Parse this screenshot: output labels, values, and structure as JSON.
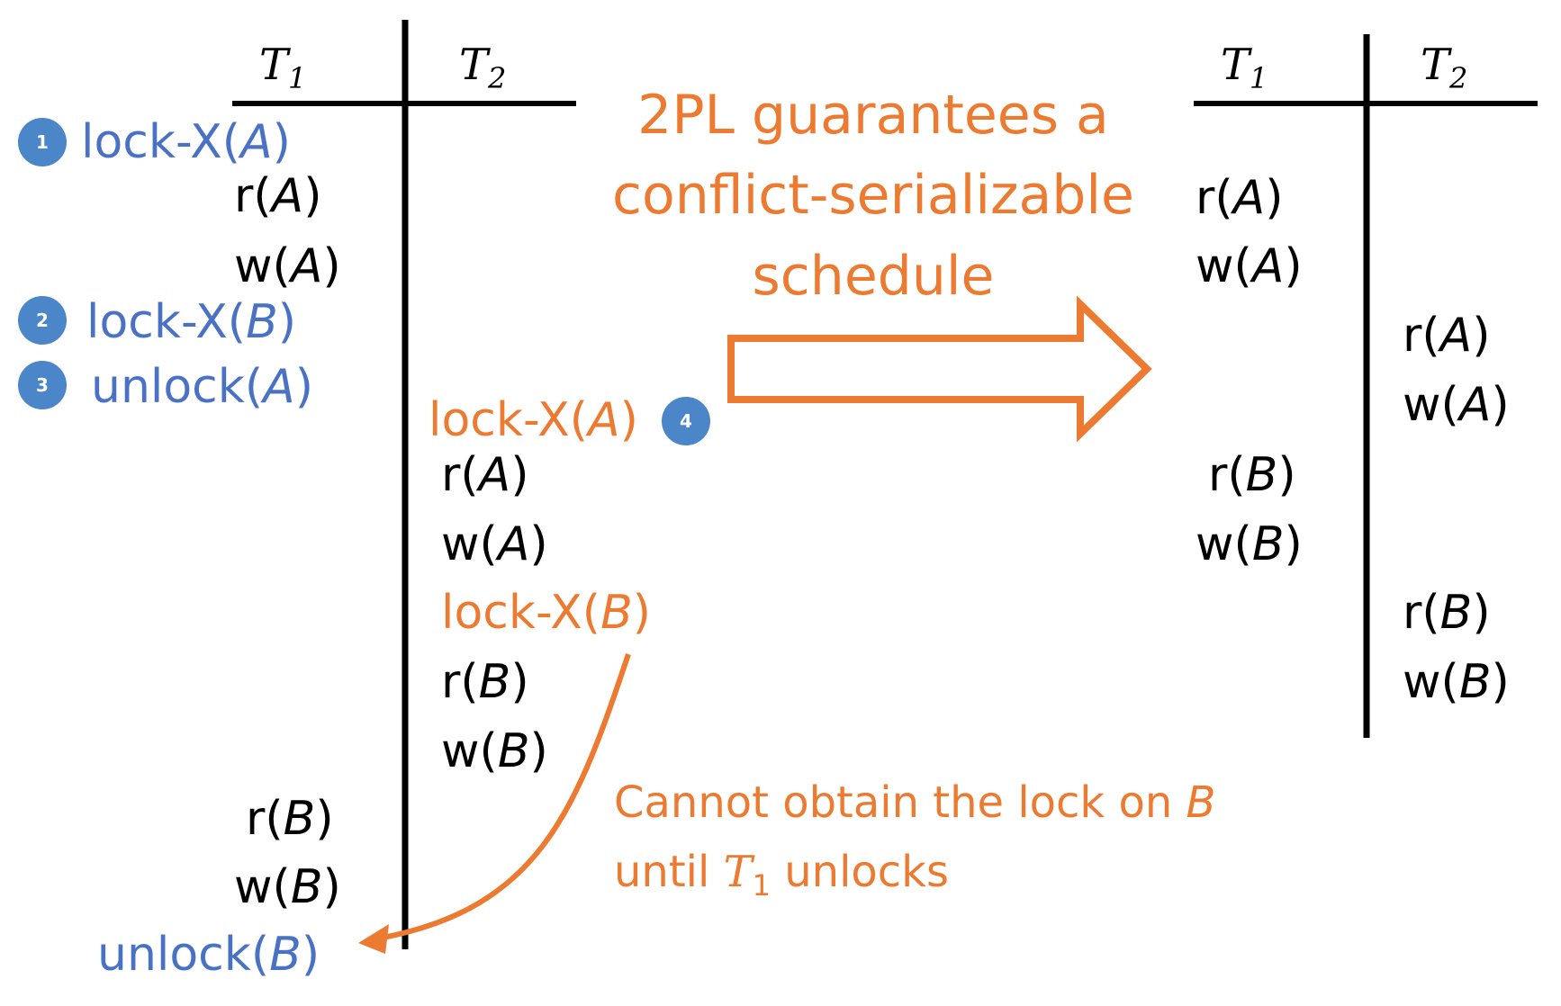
{
  "colors": {
    "t1_lock": "#4a72c4",
    "t2_lock": "#ec7a30",
    "badge": "#4a86c8",
    "ink": "#000000",
    "annotation": "#ec7a30"
  },
  "left_schedule": {
    "header_t1": {
      "base": "T",
      "sub": "1"
    },
    "header_t2": {
      "base": "T",
      "sub": "2"
    },
    "t1_ops": [
      {
        "name": "lock-x-a",
        "prefix": "lock-X(",
        "var": "A",
        "suffix": ")",
        "style": "t1-lock",
        "badge": "1"
      },
      {
        "name": "r-a",
        "prefix": "r(",
        "var": "A",
        "suffix": ")",
        "style": "plain"
      },
      {
        "name": "w-a",
        "prefix": "w(",
        "var": "A",
        "suffix": ")",
        "style": "plain"
      },
      {
        "name": "lock-x-b",
        "prefix": "lock-X(",
        "var": "B",
        "suffix": ")",
        "style": "t1-lock",
        "badge": "2"
      },
      {
        "name": "unlock-a",
        "prefix": "unlock(",
        "var": "A",
        "suffix": ")",
        "style": "t1-lock",
        "badge": "3"
      },
      {
        "name": "r-b",
        "prefix": "r(",
        "var": "B",
        "suffix": ")",
        "style": "plain"
      },
      {
        "name": "w-b",
        "prefix": "w(",
        "var": "B",
        "suffix": ")",
        "style": "plain"
      },
      {
        "name": "unlock-b",
        "prefix": "unlock(",
        "var": "B",
        "suffix": ")",
        "style": "t1-lock"
      }
    ],
    "t2_ops": [
      {
        "name": "lock-x-a",
        "prefix": "lock-X(",
        "var": "A",
        "suffix": ")",
        "style": "t2-lock",
        "badge": "4"
      },
      {
        "name": "r-a",
        "prefix": "r(",
        "var": "A",
        "suffix": ")",
        "style": "plain"
      },
      {
        "name": "w-a",
        "prefix": "w(",
        "var": "A",
        "suffix": ")",
        "style": "plain"
      },
      {
        "name": "lock-x-b",
        "prefix": "lock-X(",
        "var": "B",
        "suffix": ")",
        "style": "t2-lock"
      },
      {
        "name": "r-b",
        "prefix": "r(",
        "var": "B",
        "suffix": ")",
        "style": "plain"
      },
      {
        "name": "w-b",
        "prefix": "w(",
        "var": "B",
        "suffix": ")",
        "style": "plain"
      }
    ]
  },
  "annotation": {
    "lines": [
      "2PL guarantees a",
      "conflict-serializable",
      "schedule"
    ]
  },
  "note": {
    "line1_prefix": "Cannot obtain the lock on ",
    "line1_var": "B",
    "line2_prefix": "until ",
    "line2_var": "T",
    "line2_sub": "1",
    "line2_suffix": " unlocks"
  },
  "right_schedule": {
    "header_t1": {
      "base": "T",
      "sub": "1"
    },
    "header_t2": {
      "base": "T",
      "sub": "2"
    },
    "ops": [
      {
        "name": "t1-r-a",
        "prefix": "r(",
        "var": "A",
        "suffix": ")"
      },
      {
        "name": "t1-w-a",
        "prefix": "w(",
        "var": "A",
        "suffix": ")"
      },
      {
        "name": "t2-r-a",
        "prefix": "r(",
        "var": "A",
        "suffix": ")"
      },
      {
        "name": "t2-w-a",
        "prefix": "w(",
        "var": "A",
        "suffix": ")"
      },
      {
        "name": "t1-r-b",
        "prefix": "r(",
        "var": "B",
        "suffix": ")"
      },
      {
        "name": "t1-w-b",
        "prefix": "w(",
        "var": "B",
        "suffix": ")"
      },
      {
        "name": "t2-r-b",
        "prefix": "r(",
        "var": "B",
        "suffix": ")"
      },
      {
        "name": "t2-w-b",
        "prefix": "w(",
        "var": "B",
        "suffix": ")"
      }
    ]
  }
}
